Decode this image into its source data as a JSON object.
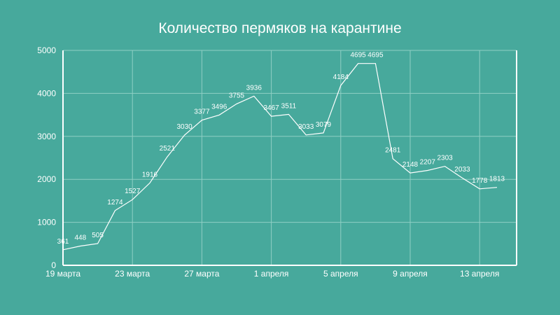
{
  "theme": {
    "background": "#47a99c",
    "foreground": "#ffffff",
    "grid": "#8fcfc4"
  },
  "chart_data": {
    "type": "line",
    "title": "Количество пермяков на карантине",
    "xlabel": "",
    "ylabel": "",
    "ylim": [
      0,
      5000
    ],
    "y_ticks": [
      0,
      1000,
      2000,
      3000,
      4000,
      5000
    ],
    "grid": true,
    "legend": "none",
    "x_tick_labels": [
      {
        "index": 0,
        "label": "19 марта"
      },
      {
        "index": 4,
        "label": "23 марта"
      },
      {
        "index": 8,
        "label": "27 марта"
      },
      {
        "index": 12,
        "label": "1 апреля"
      },
      {
        "index": 16,
        "label": "5 апреля"
      },
      {
        "index": 20,
        "label": "9 апреля"
      },
      {
        "index": 24,
        "label": "13 апреля"
      }
    ],
    "series": [
      {
        "values": [
          361,
          448,
          505,
          1274,
          1527,
          1916,
          2521,
          3030,
          3377,
          3496,
          3755,
          3936,
          3467,
          3511,
          3033,
          3079,
          4184,
          4695,
          4695,
          2481,
          2148,
          2207,
          2303,
          2033,
          1778,
          1813
        ]
      }
    ]
  }
}
